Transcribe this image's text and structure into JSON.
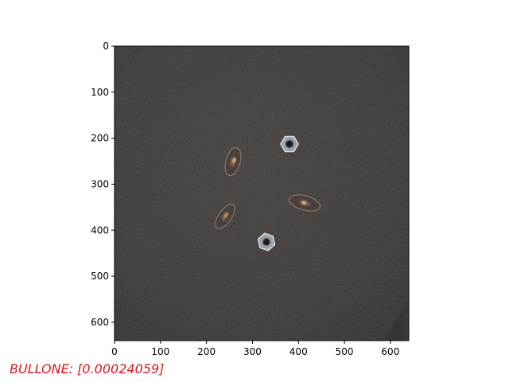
{
  "figure": {
    "image_description_label": "dark textured surface with two hex nuts and three transparent nose pads",
    "x_ticks": [
      "0",
      "100",
      "200",
      "300",
      "400",
      "500",
      "600"
    ],
    "y_ticks": [
      "0",
      "100",
      "200",
      "300",
      "400",
      "500",
      "600"
    ],
    "x_range": [
      0,
      640
    ],
    "y_range": [
      0,
      640
    ],
    "colors": {
      "background": "#262322",
      "nut": "#aeb6bb",
      "pad": "#6a5548"
    }
  },
  "caption": {
    "text": "BULLONE: [0.00024059]",
    "color": "#e8131c"
  }
}
